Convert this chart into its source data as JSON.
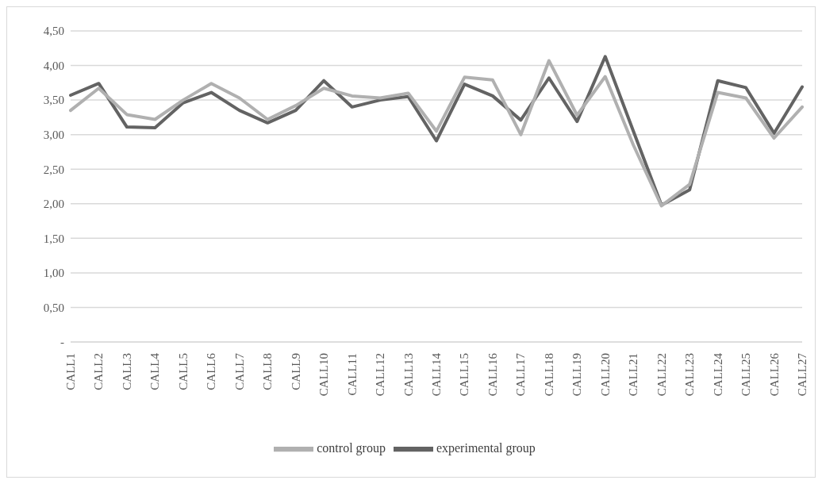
{
  "chart_data": {
    "type": "line",
    "categories": [
      "CALL1",
      "CALL2",
      "CALL3",
      "CALL4",
      "CALL5",
      "CALL6",
      "CALL7",
      "CALL8",
      "CALL9",
      "CALL10",
      "CALL11",
      "CALL12",
      "CALL13",
      "CALL14",
      "CALL15",
      "CALL16",
      "CALL17",
      "CALL18",
      "CALL19",
      "CALL20",
      "CALL21",
      "CALL22",
      "CALL23",
      "CALL24",
      "CALL25",
      "CALL26",
      "CALL27"
    ],
    "series": [
      {
        "name": "experimental group",
        "color": "#636363",
        "values": [
          3.57,
          3.74,
          3.11,
          3.1,
          3.46,
          3.61,
          3.35,
          3.17,
          3.35,
          3.78,
          3.4,
          3.5,
          3.55,
          2.91,
          3.73,
          3.56,
          3.21,
          3.82,
          3.19,
          4.13,
          3.05,
          1.98,
          2.2,
          3.78,
          3.68,
          3.02,
          3.69
        ]
      },
      {
        "name": "control group",
        "color": "#b0b0b0",
        "values": [
          3.35,
          3.67,
          3.29,
          3.22,
          3.5,
          3.74,
          3.53,
          3.22,
          3.42,
          3.67,
          3.56,
          3.53,
          3.6,
          3.05,
          3.83,
          3.79,
          3,
          4.07,
          3.28,
          3.84,
          2.85,
          1.97,
          2.28,
          3.61,
          3.53,
          2.95,
          3.4
        ]
      }
    ],
    "ylim": [
      0,
      4.5
    ],
    "yticks": [
      {
        "value": 0,
        "label": "-"
      },
      {
        "value": 0.5,
        "label": "0,50"
      },
      {
        "value": 1,
        "label": "1,00"
      },
      {
        "value": 1.5,
        "label": "1,50"
      },
      {
        "value": 2,
        "label": "2,00"
      },
      {
        "value": 2.5,
        "label": "2,50"
      },
      {
        "value": 3,
        "label": "3,00"
      },
      {
        "value": 3.5,
        "label": "3,50"
      },
      {
        "value": 4,
        "label": "4,00"
      },
      {
        "value": 4.5,
        "label": "4,50"
      }
    ],
    "grid": "y",
    "legend": "bottom",
    "marker": "none",
    "line_style": "solid"
  }
}
